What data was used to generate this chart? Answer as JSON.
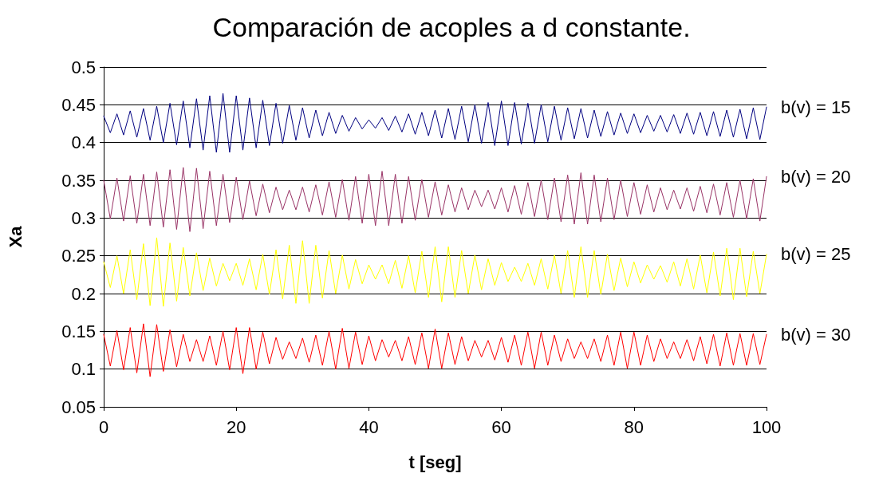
{
  "chart_data": {
    "type": "line",
    "title": "Comparación de acoples a d constante.",
    "xlabel": "t [seg]",
    "ylabel": "Xa",
    "x": [
      0,
      1,
      2,
      3,
      4,
      5,
      6,
      7,
      8,
      9,
      10,
      11,
      12,
      13,
      14,
      15,
      16,
      17,
      18,
      19,
      20,
      21,
      22,
      23,
      24,
      25,
      26,
      27,
      28,
      29,
      30,
      31,
      32,
      33,
      34,
      35,
      36,
      37,
      38,
      39,
      40,
      41,
      42,
      43,
      44,
      45,
      46,
      47,
      48,
      49,
      50,
      51,
      52,
      53,
      54,
      55,
      56,
      57,
      58,
      59,
      60,
      61,
      62,
      63,
      64,
      65,
      66,
      67,
      68,
      69,
      70,
      71,
      72,
      73,
      74,
      75,
      76,
      77,
      78,
      79,
      80,
      81,
      82,
      83,
      84,
      85,
      86,
      87,
      88,
      89,
      90,
      91,
      92,
      93,
      94,
      95,
      96,
      97,
      98,
      99,
      100
    ],
    "xlim": [
      0,
      100
    ],
    "xticks": [
      0,
      20,
      40,
      60,
      80,
      100
    ],
    "ylim": [
      0.05,
      0.5
    ],
    "yticks": [
      0.05,
      0.1,
      0.15,
      0.2,
      0.25,
      0.3,
      0.35,
      0.4,
      0.45,
      0.5
    ],
    "grid": "y",
    "legend": false,
    "marker": "none",
    "line_style": "solid",
    "series": [
      {
        "name": "b(v) = 15",
        "color": "#000080",
        "values": [
          0.435,
          0.413,
          0.438,
          0.41,
          0.442,
          0.407,
          0.445,
          0.403,
          0.448,
          0.4,
          0.452,
          0.397,
          0.455,
          0.393,
          0.458,
          0.39,
          0.462,
          0.387,
          0.465,
          0.387,
          0.462,
          0.39,
          0.459,
          0.393,
          0.456,
          0.396,
          0.452,
          0.399,
          0.449,
          0.403,
          0.446,
          0.406,
          0.443,
          0.409,
          0.44,
          0.412,
          0.436,
          0.415,
          0.433,
          0.418,
          0.43,
          0.419,
          0.433,
          0.416,
          0.435,
          0.414,
          0.438,
          0.411,
          0.44,
          0.409,
          0.443,
          0.406,
          0.445,
          0.404,
          0.448,
          0.401,
          0.45,
          0.399,
          0.453,
          0.396,
          0.455,
          0.396,
          0.453,
          0.398,
          0.452,
          0.399,
          0.45,
          0.401,
          0.448,
          0.403,
          0.446,
          0.405,
          0.445,
          0.406,
          0.443,
          0.408,
          0.441,
          0.41,
          0.439,
          0.412,
          0.438,
          0.413,
          0.436,
          0.415,
          0.436,
          0.414,
          0.437,
          0.412,
          0.439,
          0.411,
          0.44,
          0.409,
          0.441,
          0.408,
          0.443,
          0.407,
          0.444,
          0.405,
          0.446,
          0.404,
          0.447
        ]
      },
      {
        "name": "b(v) = 20",
        "color": "#993366",
        "values": [
          0.35,
          0.299,
          0.353,
          0.296,
          0.356,
          0.293,
          0.358,
          0.29,
          0.361,
          0.288,
          0.364,
          0.285,
          0.367,
          0.282,
          0.366,
          0.286,
          0.362,
          0.29,
          0.358,
          0.294,
          0.354,
          0.298,
          0.349,
          0.303,
          0.345,
          0.307,
          0.341,
          0.311,
          0.337,
          0.311,
          0.341,
          0.308,
          0.344,
          0.304,
          0.348,
          0.301,
          0.351,
          0.297,
          0.355,
          0.293,
          0.358,
          0.29,
          0.362,
          0.29,
          0.358,
          0.293,
          0.355,
          0.297,
          0.351,
          0.301,
          0.348,
          0.304,
          0.344,
          0.308,
          0.34,
          0.311,
          0.337,
          0.315,
          0.337,
          0.312,
          0.34,
          0.308,
          0.343,
          0.305,
          0.347,
          0.302,
          0.35,
          0.298,
          0.353,
          0.295,
          0.357,
          0.292,
          0.36,
          0.292,
          0.357,
          0.295,
          0.353,
          0.298,
          0.35,
          0.302,
          0.347,
          0.305,
          0.344,
          0.308,
          0.34,
          0.311,
          0.337,
          0.312,
          0.34,
          0.309,
          0.342,
          0.307,
          0.345,
          0.304,
          0.347,
          0.301,
          0.35,
          0.299,
          0.352,
          0.296,
          0.355
        ]
      },
      {
        "name": "b(v) = 25",
        "color": "#ffff00",
        "values": [
          0.242,
          0.208,
          0.25,
          0.2,
          0.258,
          0.192,
          0.266,
          0.184,
          0.274,
          0.183,
          0.267,
          0.19,
          0.261,
          0.197,
          0.254,
          0.204,
          0.247,
          0.21,
          0.24,
          0.217,
          0.24,
          0.211,
          0.246,
          0.205,
          0.252,
          0.199,
          0.258,
          0.193,
          0.264,
          0.187,
          0.27,
          0.187,
          0.264,
          0.194,
          0.257,
          0.2,
          0.251,
          0.206,
          0.245,
          0.213,
          0.238,
          0.219,
          0.238,
          0.213,
          0.244,
          0.207,
          0.25,
          0.201,
          0.256,
          0.195,
          0.262,
          0.189,
          0.262,
          0.195,
          0.257,
          0.2,
          0.251,
          0.205,
          0.246,
          0.211,
          0.241,
          0.216,
          0.235,
          0.216,
          0.24,
          0.211,
          0.246,
          0.206,
          0.251,
          0.2,
          0.257,
          0.195,
          0.262,
          0.195,
          0.257,
          0.199,
          0.252,
          0.204,
          0.247,
          0.209,
          0.242,
          0.214,
          0.238,
          0.219,
          0.237,
          0.215,
          0.242,
          0.21,
          0.246,
          0.206,
          0.251,
          0.201,
          0.255,
          0.197,
          0.26,
          0.192,
          0.26,
          0.196,
          0.256,
          0.2,
          0.252
        ]
      },
      {
        "name": "b(v) = 30",
        "color": "#ff0000",
        "values": [
          0.146,
          0.104,
          0.151,
          0.099,
          0.155,
          0.095,
          0.16,
          0.09,
          0.159,
          0.097,
          0.152,
          0.103,
          0.146,
          0.11,
          0.139,
          0.11,
          0.144,
          0.105,
          0.15,
          0.099,
          0.155,
          0.094,
          0.155,
          0.1,
          0.149,
          0.107,
          0.142,
          0.113,
          0.136,
          0.114,
          0.141,
          0.109,
          0.145,
          0.105,
          0.15,
          0.1,
          0.154,
          0.101,
          0.149,
          0.106,
          0.144,
          0.111,
          0.139,
          0.116,
          0.138,
          0.111,
          0.143,
          0.106,
          0.148,
          0.101,
          0.153,
          0.101,
          0.148,
          0.106,
          0.143,
          0.111,
          0.138,
          0.116,
          0.138,
          0.112,
          0.142,
          0.109,
          0.145,
          0.105,
          0.149,
          0.101,
          0.149,
          0.105,
          0.145,
          0.11,
          0.14,
          0.114,
          0.136,
          0.114,
          0.14,
          0.11,
          0.145,
          0.105,
          0.149,
          0.101,
          0.149,
          0.105,
          0.145,
          0.11,
          0.14,
          0.114,
          0.136,
          0.114,
          0.139,
          0.111,
          0.143,
          0.107,
          0.146,
          0.104,
          0.148,
          0.105,
          0.147,
          0.105,
          0.147,
          0.106,
          0.146
        ]
      }
    ]
  }
}
